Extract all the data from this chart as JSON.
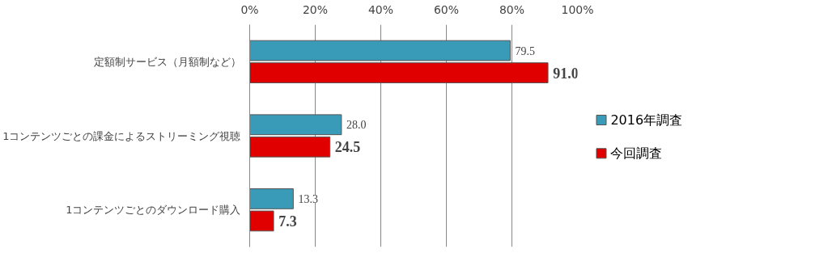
{
  "chart_data": {
    "type": "bar",
    "orientation": "horizontal",
    "categories": [
      "定額制サービス（月額制など）",
      "1コンテンツごとの課金によるストリーミング視聴",
      "1コンテンツごとのダウンロード購入"
    ],
    "series": [
      {
        "name": "2016年調査",
        "color": "#3a9bb8",
        "values": [
          79.5,
          28.0,
          13.3
        ],
        "value_labels": [
          "79.5",
          "28.0",
          "13.3"
        ]
      },
      {
        "name": "今回調査",
        "color": "#e00000",
        "values": [
          91.0,
          24.5,
          7.3
        ],
        "value_labels": [
          "91.0",
          "24.5",
          "7.3"
        ]
      }
    ],
    "xlim": [
      0,
      100
    ],
    "xticks": [
      {
        "value": 0,
        "label": "0%"
      },
      {
        "value": 20,
        "label": "20%"
      },
      {
        "value": 40,
        "label": "40%"
      },
      {
        "value": 60,
        "label": "60%"
      },
      {
        "value": 80,
        "label": "80%"
      },
      {
        "value": 100,
        "label": "100%"
      }
    ],
    "grid": "x",
    "legend": "right"
  }
}
